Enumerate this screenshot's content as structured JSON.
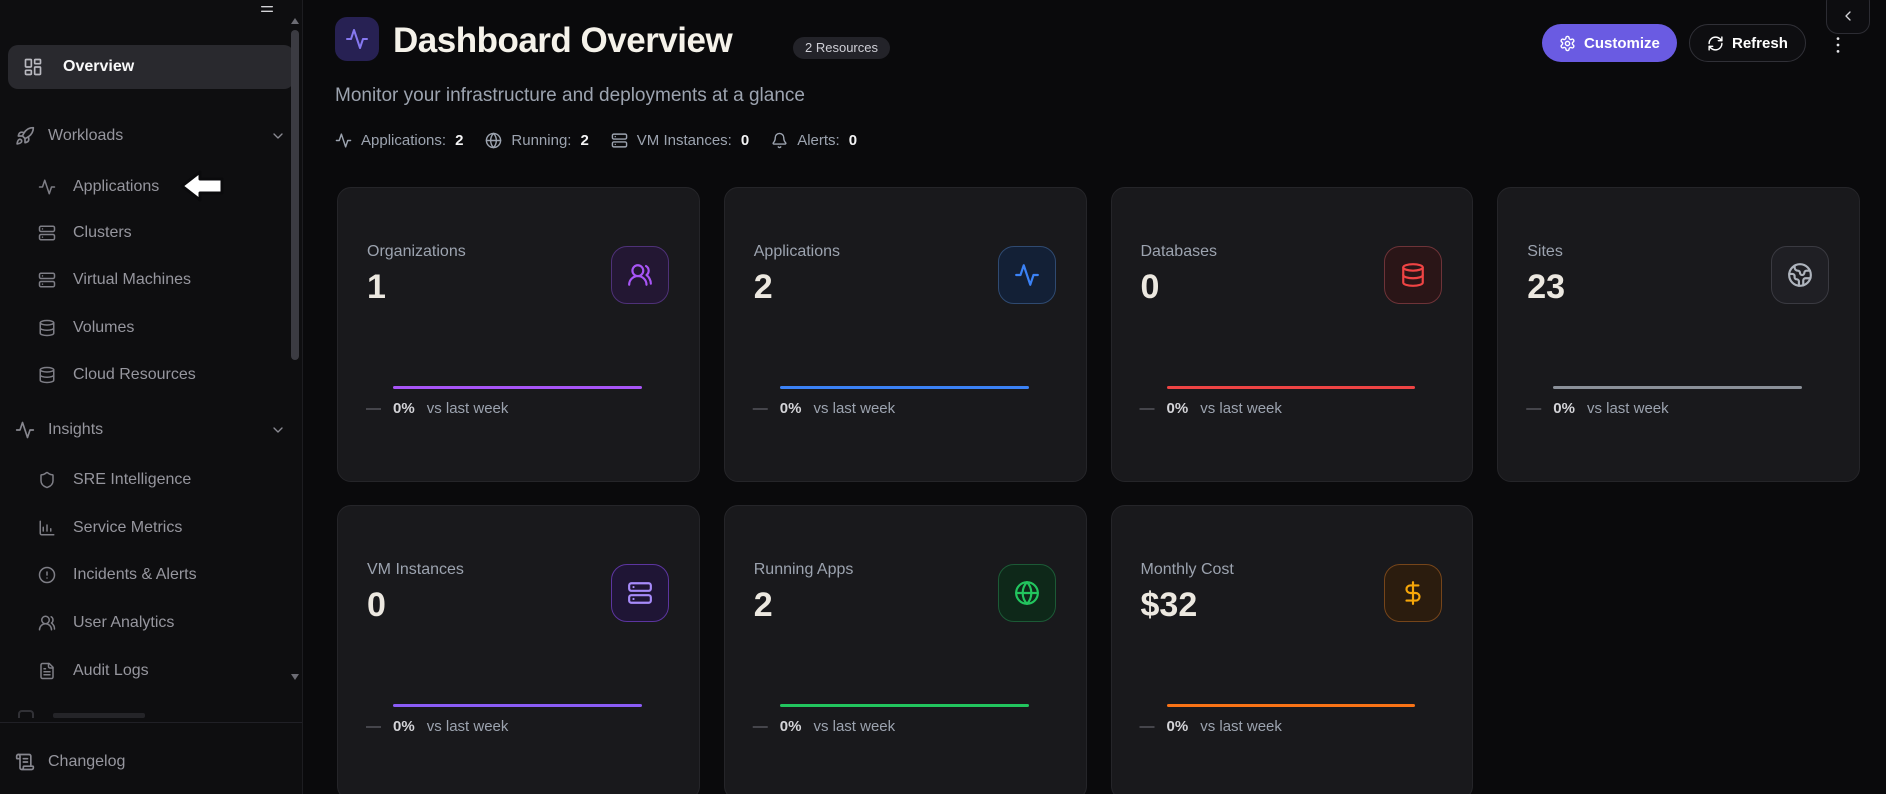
{
  "sidebar": {
    "menu_icon": "menu",
    "overview": {
      "label": "Overview",
      "icon": "layout-dashboard"
    },
    "groups": [
      {
        "label": "Workloads",
        "icon": "rocket",
        "chevron": "chevron-down",
        "items": [
          {
            "label": "Applications",
            "icon": "activity"
          },
          {
            "label": "Clusters",
            "icon": "server"
          },
          {
            "label": "Virtual Machines",
            "icon": "server"
          },
          {
            "label": "Volumes",
            "icon": "database"
          },
          {
            "label": "Cloud Resources",
            "icon": "database"
          }
        ]
      },
      {
        "label": "Insights",
        "icon": "activity",
        "chevron": "chevron-down",
        "items": [
          {
            "label": "SRE Intelligence",
            "icon": "shield"
          },
          {
            "label": "Service Metrics",
            "icon": "bar-chart"
          },
          {
            "label": "Incidents & Alerts",
            "icon": "alert-circle"
          },
          {
            "label": "User Analytics",
            "icon": "users-round"
          },
          {
            "label": "Audit Logs",
            "icon": "file-text"
          }
        ]
      }
    ],
    "footer": {
      "label": "Changelog",
      "icon": "scroll-text"
    }
  },
  "header": {
    "title": "Dashboard Overview",
    "title_icon": "activity",
    "badge": "2 Resources",
    "subtitle": "Monitor your infrastructure and deployments at a glance",
    "stats": [
      {
        "icon": "activity",
        "label": "Applications:",
        "value": "2"
      },
      {
        "icon": "globe",
        "label": "Running:",
        "value": "2"
      },
      {
        "icon": "server",
        "label": "VM Instances:",
        "value": "0"
      },
      {
        "icon": "bell",
        "label": "Alerts:",
        "value": "0"
      }
    ],
    "actions": {
      "customize": {
        "label": "Customize",
        "icon": "gear",
        "bg": "#6a5be2"
      },
      "refresh": {
        "label": "Refresh",
        "icon": "refresh"
      },
      "more_icon": "more-vertical",
      "collapse_icon": "chevron-left"
    }
  },
  "cards": [
    {
      "label": "Organizations",
      "value": "1",
      "icon": "users-round",
      "icon_color": "#a855f7",
      "tile_bg": "#231733",
      "tile_border": "#4e3178",
      "accent": "#a855f7",
      "change": "0%"
    },
    {
      "label": "Applications",
      "value": "2",
      "icon": "activity",
      "icon_color": "#3b82f6",
      "tile_bg": "#132036",
      "tile_border": "#2f4a71",
      "accent": "#3b82f6",
      "change": "0%"
    },
    {
      "label": "Databases",
      "value": "0",
      "icon": "database",
      "icon_color": "#ef4444",
      "tile_bg": "#2a1517",
      "tile_border": "#6e3338",
      "accent": "#ef4444",
      "change": "0%"
    },
    {
      "label": "Sites",
      "value": "23",
      "icon": "earth",
      "icon_color": "#aeb4bd",
      "tile_bg": "#1f1f24",
      "tile_border": "#3a3a41",
      "accent": "#8b9099",
      "change": "0%"
    },
    {
      "label": "VM Instances",
      "value": "0",
      "icon": "server",
      "icon_color": "#a78bfa",
      "tile_bg": "#1f1535",
      "tile_border": "#5c35a0",
      "accent": "#8b5cf6",
      "change": "0%"
    },
    {
      "label": "Running Apps",
      "value": "2",
      "icon": "globe",
      "icon_color": "#22c55e",
      "tile_bg": "#0e2819",
      "tile_border": "#1c5a36",
      "accent": "#22c55e",
      "change": "0%"
    },
    {
      "label": "Monthly Cost",
      "value": "$32",
      "icon": "dollar",
      "icon_color": "#f6a609",
      "tile_bg": "#2b1c0e",
      "tile_border": "#76451a",
      "accent": "#f97316",
      "change": "0%"
    }
  ],
  "card_footer": {
    "dash": "—",
    "suffix": "vs last week"
  }
}
